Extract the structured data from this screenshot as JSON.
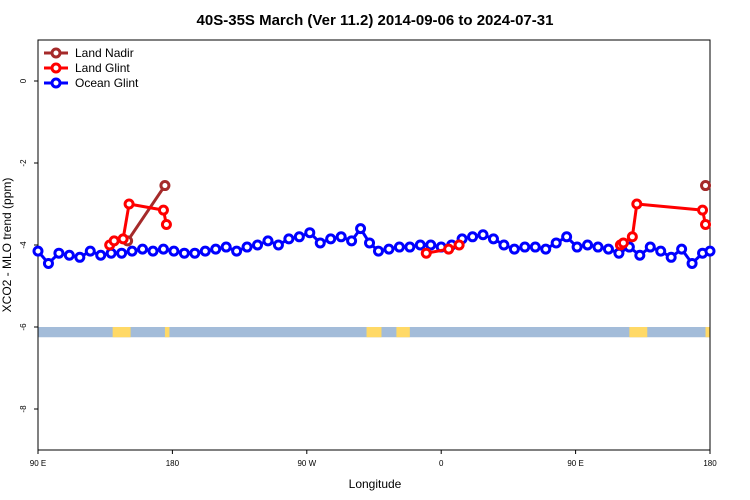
{
  "chart_data": {
    "type": "line",
    "title": "40S-35S March (Ver 11.2)   2014-09-06 to 2024-07-31",
    "xlabel": "Longitude",
    "ylabel": "XCO2 - MLO trend (ppm)",
    "x_ticks": [
      {
        "value": 90,
        "label": "90 E"
      },
      {
        "value": 180,
        "label": "180"
      },
      {
        "value": 270,
        "label": "90 W"
      },
      {
        "value": 360,
        "label": "0"
      },
      {
        "value": 450,
        "label": "90 E"
      },
      {
        "value": 540,
        "label": "180"
      }
    ],
    "y_ticks": [
      {
        "value": 0,
        "label": "0"
      },
      {
        "value": -2,
        "label": "-2"
      },
      {
        "value": -4,
        "label": "-4"
      },
      {
        "value": -6,
        "label": "-6"
      },
      {
        "value": -8,
        "label": "-8"
      }
    ],
    "xlim": [
      90,
      540
    ],
    "ylim": [
      -9,
      1
    ],
    "legend_position": "top-left",
    "series": [
      {
        "name": "Land Nadir",
        "color": "#a52a2a",
        "points": [
          [
            150,
            -3.9
          ],
          [
            175,
            -2.55
          ],
          [
            537,
            -2.55
          ]
        ]
      },
      {
        "name": "Land Glint",
        "color": "#ff0000",
        "points": [
          [
            138,
            -4.0
          ],
          [
            141,
            -3.9
          ],
          [
            147,
            -3.85
          ],
          [
            151,
            -3.0
          ],
          [
            174,
            -3.15
          ],
          [
            176,
            -3.5
          ],
          [
            350,
            -4.2
          ],
          [
            365,
            -4.1
          ],
          [
            372,
            -4.0
          ],
          [
            480,
            -4.0
          ],
          [
            482,
            -3.95
          ],
          [
            488,
            -3.8
          ],
          [
            491,
            -3.0
          ],
          [
            535,
            -3.15
          ],
          [
            537,
            -3.5
          ]
        ]
      },
      {
        "name": "Ocean Glint",
        "color": "#0000ff",
        "points": [
          [
            90,
            -4.15
          ],
          [
            97,
            -4.45
          ],
          [
            104,
            -4.2
          ],
          [
            111,
            -4.25
          ],
          [
            118,
            -4.3
          ],
          [
            125,
            -4.15
          ],
          [
            132,
            -4.25
          ],
          [
            139,
            -4.2
          ],
          [
            146,
            -4.2
          ],
          [
            153,
            -4.15
          ],
          [
            160,
            -4.1
          ],
          [
            167,
            -4.15
          ],
          [
            174,
            -4.1
          ],
          [
            181,
            -4.15
          ],
          [
            188,
            -4.2
          ],
          [
            195,
            -4.2
          ],
          [
            202,
            -4.15
          ],
          [
            209,
            -4.1
          ],
          [
            216,
            -4.05
          ],
          [
            223,
            -4.15
          ],
          [
            230,
            -4.05
          ],
          [
            237,
            -4.0
          ],
          [
            244,
            -3.9
          ],
          [
            251,
            -4.0
          ],
          [
            258,
            -3.85
          ],
          [
            265,
            -3.8
          ],
          [
            272,
            -3.7
          ],
          [
            279,
            -3.95
          ],
          [
            286,
            -3.85
          ],
          [
            293,
            -3.8
          ],
          [
            300,
            -3.9
          ],
          [
            306,
            -3.6
          ],
          [
            312,
            -3.95
          ],
          [
            318,
            -4.15
          ],
          [
            325,
            -4.1
          ],
          [
            332,
            -4.05
          ],
          [
            339,
            -4.05
          ],
          [
            346,
            -4.0
          ],
          [
            353,
            -4.0
          ],
          [
            360,
            -4.05
          ],
          [
            367,
            -4.0
          ],
          [
            374,
            -3.85
          ],
          [
            381,
            -3.8
          ],
          [
            388,
            -3.75
          ],
          [
            395,
            -3.85
          ],
          [
            402,
            -4.0
          ],
          [
            409,
            -4.1
          ],
          [
            416,
            -4.05
          ],
          [
            423,
            -4.05
          ],
          [
            430,
            -4.1
          ],
          [
            437,
            -3.95
          ],
          [
            444,
            -3.8
          ],
          [
            451,
            -4.05
          ],
          [
            458,
            -4.0
          ],
          [
            465,
            -4.05
          ],
          [
            472,
            -4.1
          ],
          [
            479,
            -4.2
          ],
          [
            486,
            -4.05
          ],
          [
            493,
            -4.25
          ],
          [
            500,
            -4.05
          ],
          [
            507,
            -4.15
          ],
          [
            514,
            -4.3
          ],
          [
            521,
            -4.1
          ],
          [
            528,
            -4.45
          ],
          [
            535,
            -4.2
          ],
          [
            540,
            -4.15
          ]
        ]
      }
    ],
    "land_band_y": [
      -6.25,
      -6.0
    ],
    "land_band_colors": {
      "ocean": "#a3bcd9",
      "land": "#ffd966"
    },
    "land_patches": [
      [
        140,
        152
      ],
      [
        175,
        178
      ],
      [
        310,
        320
      ],
      [
        330,
        339
      ],
      [
        486,
        498
      ],
      [
        537,
        540
      ]
    ]
  },
  "legend": {
    "items": [
      {
        "name": "Land Nadir",
        "color": "#a52a2a"
      },
      {
        "name": "Land Glint",
        "color": "#ff0000"
      },
      {
        "name": "Ocean Glint",
        "color": "#0000ff"
      }
    ]
  }
}
